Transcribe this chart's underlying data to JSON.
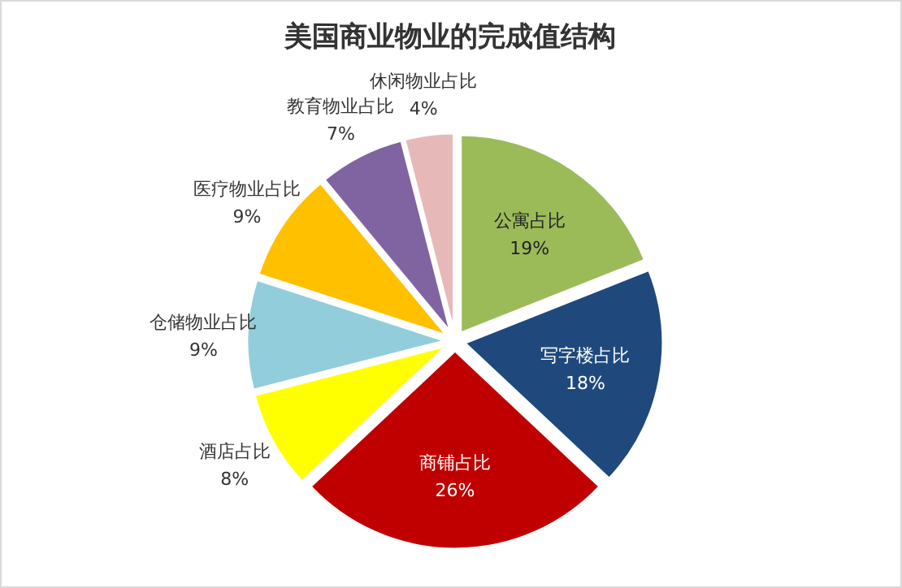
{
  "chart_data": {
    "type": "pie",
    "title": "美国商业物业的完成值结构",
    "categories": [
      "公寓占比",
      "写字楼占比",
      "商铺占比",
      "酒店占比",
      "仓储物业占比",
      "医疗物业占比",
      "教育物业占比",
      "休闲物业占比"
    ],
    "values": [
      19,
      18,
      26,
      8,
      9,
      9,
      7,
      4
    ],
    "colors": [
      "#9bbb59",
      "#1f497d",
      "#c00000",
      "#ffff00",
      "#92cddc",
      "#ffc000",
      "#8064a2",
      "#e6b9b8"
    ],
    "value_labels": [
      "19%",
      "18%",
      "26%",
      "8%",
      "9%",
      "9%",
      "7%",
      "4%"
    ],
    "legend": false
  }
}
